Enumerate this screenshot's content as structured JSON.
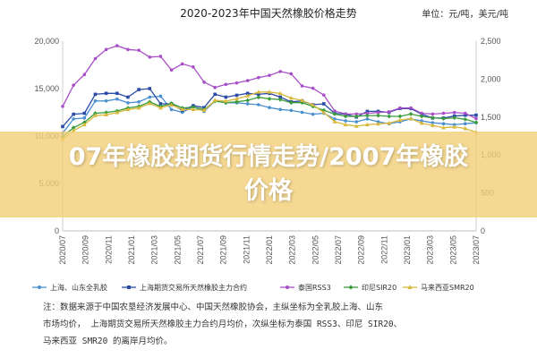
{
  "banner": {
    "title": "07年橡胶期货行情走势/2007年橡胶价格"
  },
  "chart_data": {
    "type": "line",
    "title": "2020-2023年中国天然橡胶价格走势",
    "unit_label": "单位：元/吨，美元/吨",
    "y_left": {
      "min": 0,
      "max": 20000,
      "ticks": [
        "0",
        "5,000",
        "10,000",
        "15,000",
        "20,000"
      ]
    },
    "y_right": {
      "min": 0,
      "max": 2500,
      "ticks": [
        "0",
        "500",
        "1,000",
        "1,500",
        "2,000",
        "2,500"
      ]
    },
    "x_labels": [
      "2020/07",
      "2020/09",
      "2020/11",
      "2021/01",
      "2021/03",
      "2021/05",
      "2021/07",
      "2021/09",
      "2021/11",
      "2022/01",
      "2022/03",
      "2022/05",
      "2022/07",
      "2022/09",
      "2022/11",
      "2023/01",
      "2023/03",
      "2023/05",
      "2023/07"
    ],
    "series": [
      {
        "name": "上海、山东全乳胶",
        "axis": "left",
        "color": "#4a8fd0",
        "marker": "circle",
        "values": [
          10300,
          11800,
          11900,
          13700,
          13700,
          13900,
          13500,
          13600,
          14100,
          14200,
          12800,
          12500,
          13100,
          12600,
          13700,
          13500,
          13500,
          13400,
          13300,
          13000,
          12800,
          12700,
          12500,
          12300,
          12400,
          11800,
          11600,
          11500,
          11800,
          11500,
          11300,
          11500,
          11800,
          11600,
          11400,
          11300,
          11200,
          11300,
          11400
        ]
      },
      {
        "name": "上海期货交易所天然橡胶主力合约",
        "axis": "left",
        "color": "#2a4ba6",
        "marker": "square",
        "values": [
          11000,
          12300,
          12400,
          14400,
          14500,
          14500,
          14100,
          14900,
          15000,
          13400,
          13400,
          12700,
          13200,
          13000,
          14400,
          14100,
          14300,
          14500,
          14400,
          14500,
          14100,
          13600,
          13700,
          13300,
          13400,
          12400,
          12300,
          12000,
          12600,
          12600,
          12500,
          12900,
          12900,
          12300,
          11900,
          11900,
          12100,
          12200,
          12200
        ]
      },
      {
        "name": "泰国RSS3",
        "axis": "right",
        "color": "#a84fc8",
        "marker": "circle",
        "values": [
          1640,
          1920,
          2060,
          2270,
          2390,
          2440,
          2390,
          2380,
          2290,
          2300,
          2120,
          2200,
          2160,
          1960,
          1890,
          1930,
          1950,
          1980,
          2020,
          2050,
          2100,
          2070,
          1910,
          1880,
          1790,
          1580,
          1540,
          1540,
          1550,
          1560,
          1570,
          1620,
          1620,
          1550,
          1540,
          1550,
          1560,
          1550,
          1480
        ]
      },
      {
        "name": "印尼SIR20",
        "axis": "right",
        "color": "#3c9c3c",
        "marker": "diamond",
        "values": [
          1240,
          1360,
          1430,
          1550,
          1560,
          1580,
          1620,
          1640,
          1700,
          1640,
          1680,
          1620,
          1630,
          1600,
          1710,
          1690,
          1700,
          1720,
          1760,
          1740,
          1730,
          1690,
          1690,
          1640,
          1590,
          1540,
          1510,
          1510,
          1520,
          1520,
          1510,
          1510,
          1540,
          1510,
          1490,
          1480,
          1490,
          1470,
          1430
        ]
      },
      {
        "name": "马来西亚SMR20",
        "axis": "right",
        "color": "#d7b83a",
        "marker": "triangle",
        "values": [
          1210,
          1320,
          1400,
          1520,
          1530,
          1560,
          1600,
          1620,
          1680,
          1620,
          1660,
          1600,
          1600,
          1590,
          1720,
          1710,
          1740,
          1780,
          1830,
          1830,
          1810,
          1750,
          1720,
          1660,
          1560,
          1440,
          1400,
          1380,
          1400,
          1410,
          1420,
          1460,
          1480,
          1420,
          1390,
          1360,
          1370,
          1350,
          1300
        ]
      }
    ],
    "grid": false,
    "legend_position": "bottom"
  },
  "note": {
    "lines": [
      "注：数据来源于中国农垦经济发展中心、中国天然橡胶协会，主纵坐标为全乳胶上海、山东",
      "市场均价，      上海期货交易所天然橡胶主力合约月均价，次纵坐标为泰国 RSS3、印尼 SIR20、",
      "马来西亚 SMR20 的离岸月均价。"
    ]
  }
}
